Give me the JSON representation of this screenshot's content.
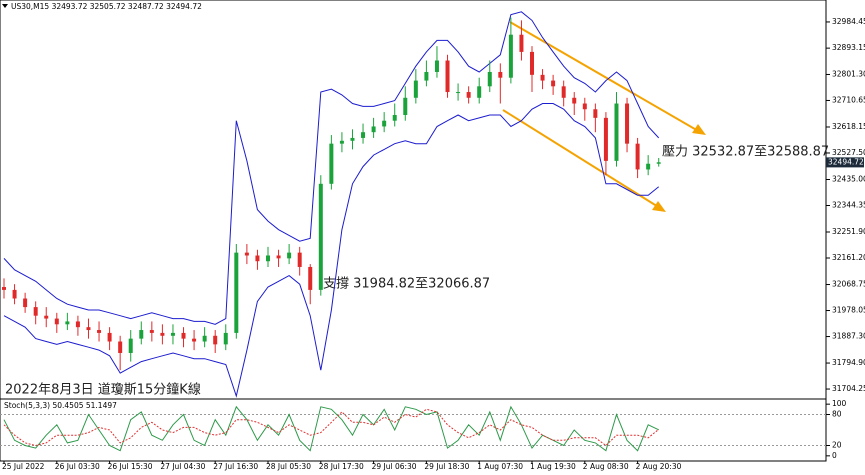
{
  "chart_data": [
    {
      "type": "candlestick",
      "title": "US30,M15  32493.72 32505.72 32487.72 32494.72",
      "categories": [
        "25 Jul 2022",
        null,
        null,
        null,
        null,
        "26 Jul 03:30",
        null,
        null,
        null,
        null,
        "26 Jul 15:30",
        null,
        null,
        null,
        null,
        "27 Jul 04:30",
        null,
        null,
        null,
        null,
        "27 Jul 16:30",
        null,
        null,
        null,
        null,
        "28 Jul 05:30",
        null,
        null,
        null,
        null,
        "28 Jul 17:30",
        null,
        null,
        null,
        null,
        "29 Jul 06:30",
        null,
        null,
        null,
        null,
        "29 Jul 18:30",
        null,
        null,
        null,
        null,
        "1 Aug 07:30",
        null,
        null,
        null,
        null,
        "1 Aug 19:30",
        null,
        null,
        null,
        null,
        "2 Aug 08:30",
        null,
        null,
        null,
        null,
        "2 Aug 20:30",
        null,
        null
      ],
      "open": [
        32060,
        32050,
        32020,
        31990,
        31960,
        31950,
        31930,
        31940,
        31920,
        31910,
        31900,
        31870,
        31830,
        31880,
        31910,
        31900,
        31890,
        31900,
        31880,
        31870,
        31890,
        31860,
        31900,
        32180,
        32170,
        32150,
        32170,
        32160,
        32180,
        32130,
        32050,
        32420,
        32560,
        32570,
        32580,
        32600,
        32620,
        32640,
        32660,
        32720,
        32780,
        32810,
        32850,
        32740,
        32740,
        32720,
        32760,
        32810,
        32790,
        32940,
        32880,
        32800,
        32780,
        32760,
        32720,
        32700,
        32680,
        32650,
        32500,
        32700,
        32560,
        32470,
        32490
      ],
      "high": [
        32090,
        32070,
        32040,
        32010,
        31990,
        31970,
        31970,
        31960,
        31950,
        31940,
        31920,
        31890,
        31910,
        31940,
        31940,
        31930,
        31930,
        31920,
        31910,
        31920,
        31910,
        31930,
        32210,
        32210,
        32190,
        32200,
        32190,
        32210,
        32200,
        32140,
        32450,
        32590,
        32600,
        32610,
        32630,
        32650,
        32670,
        32700,
        32760,
        32820,
        32850,
        32900,
        32870,
        32770,
        32760,
        32790,
        32850,
        32840,
        33000,
        32990,
        32900,
        32820,
        32800,
        32780,
        32740,
        32720,
        32700,
        32670,
        32740,
        32720,
        32580,
        32520,
        32510
      ],
      "low": [
        32020,
        32000,
        31970,
        31930,
        31920,
        31900,
        31910,
        31890,
        31880,
        31870,
        31840,
        31770,
        31800,
        31860,
        31870,
        31860,
        31860,
        31850,
        31840,
        31850,
        31830,
        31840,
        31880,
        32140,
        32120,
        32130,
        32130,
        32140,
        32100,
        32000,
        32030,
        32400,
        32530,
        32540,
        32560,
        32580,
        32600,
        32620,
        32640,
        32700,
        32760,
        32790,
        32720,
        32710,
        32700,
        32700,
        32740,
        32700,
        32770,
        32850,
        32740,
        32750,
        32730,
        32690,
        32660,
        32640,
        32600,
        32450,
        32480,
        32530,
        32440,
        32450,
        32480
      ],
      "close": [
        32050,
        32020,
        31990,
        31960,
        31950,
        31930,
        31940,
        31920,
        31910,
        31900,
        31870,
        31830,
        31880,
        31910,
        31900,
        31890,
        31900,
        31880,
        31870,
        31890,
        31860,
        31900,
        32180,
        32170,
        32150,
        32170,
        32160,
        32180,
        32130,
        32050,
        32420,
        32560,
        32570,
        32580,
        32600,
        32620,
        32640,
        32660,
        32720,
        32780,
        32810,
        32850,
        32740,
        32740,
        32720,
        32760,
        32810,
        32790,
        32940,
        32880,
        32800,
        32780,
        32760,
        32720,
        32700,
        32680,
        32650,
        32500,
        32700,
        32560,
        32470,
        32490,
        32495
      ],
      "up_color": "#1aa33a",
      "down_color": "#e02a2a",
      "series": [
        {
          "color": "#1c1ccf",
          "values": [
            32160,
            32120,
            32100,
            32080,
            32050,
            32020,
            32000,
            31990,
            31980,
            31980,
            31970,
            31960,
            31950,
            31960,
            31970,
            31960,
            31950,
            31950,
            31940,
            31940,
            31930,
            31950,
            32640,
            32500,
            32330,
            32290,
            32260,
            32240,
            32220,
            32230,
            32740,
            32750,
            32730,
            32700,
            32690,
            32690,
            32700,
            32710,
            32770,
            32830,
            32880,
            32920,
            32920,
            32880,
            32830,
            32810,
            32840,
            32870,
            33010,
            33020,
            32990,
            32930,
            32880,
            32830,
            32790,
            32770,
            32740,
            32780,
            32810,
            32780,
            32700,
            32620,
            32580
          ]
        },
        {
          "color": "#1c1ccf",
          "values": [
            31960,
            31940,
            31920,
            31880,
            31870,
            31860,
            31870,
            31860,
            31850,
            31840,
            31820,
            31760,
            31780,
            31800,
            31810,
            31820,
            31830,
            31820,
            31810,
            31810,
            31800,
            31790,
            31680,
            31840,
            32010,
            32060,
            32080,
            32100,
            32070,
            31960,
            31770,
            31980,
            32260,
            32420,
            32480,
            32520,
            32540,
            32560,
            32570,
            32560,
            32560,
            32620,
            32640,
            32660,
            32640,
            32650,
            32660,
            32660,
            32620,
            32640,
            32680,
            32700,
            32700,
            32680,
            32640,
            32620,
            32580,
            32420,
            32420,
            32400,
            32380,
            32380,
            32410
          ]
        }
      ],
      "last_price": 32494.72,
      "ylim": [
        31673,
        33061
      ],
      "yticks": [
        32984.45,
        32893.15,
        {
          "value": 32801.3,
          "label": "32801.30"
        },
        32710.65,
        32618.15,
        {
          "value": 32527.5,
          "label": "32527.50"
        },
        {
          "value": 32435,
          "label": "32435.00"
        },
        32344.35,
        {
          "value": 32251.9,
          "label": "32251.90"
        },
        {
          "value": 32161.2,
          "label": "32161.20"
        },
        32068.75,
        31978.05,
        {
          "value": 31887.3,
          "label": "31887.30"
        },
        {
          "value": 31794.9,
          "label": "31794.90"
        },
        31704.25
      ],
      "annotations": [
        "壓力 32532.87至32588.87",
        "支撐 31984.82至32066.87",
        "2022年8月3日 道瓊斯15分鐘K線"
      ]
    },
    {
      "type": "line",
      "title": "Stoch(5,3,3) 50.4505 51.1497",
      "series": [
        {
          "color": "#2e9a4a",
          "values": [
            70,
            30,
            20,
            15,
            40,
            60,
            25,
            30,
            80,
            50,
            20,
            10,
            70,
            85,
            40,
            30,
            60,
            80,
            30,
            20,
            70,
            40,
            95,
            70,
            30,
            60,
            40,
            80,
            30,
            10,
            95,
            90,
            70,
            40,
            80,
            60,
            90,
            50,
            95,
            90,
            80,
            85,
            15,
            30,
            60,
            40,
            85,
            30,
            95,
            60,
            15,
            40,
            30,
            20,
            50,
            30,
            25,
            10,
            80,
            30,
            10,
            60,
            50.4505
          ]
        },
        {
          "color": "#e03030",
          "values": [
            60,
            40,
            25,
            20,
            25,
            40,
            40,
            40,
            45,
            55,
            50,
            25,
            35,
            55,
            65,
            50,
            45,
            55,
            55,
            45,
            40,
            45,
            70,
            70,
            65,
            55,
            45,
            60,
            50,
            40,
            45,
            65,
            85,
            65,
            65,
            60,
            75,
            65,
            80,
            75,
            90,
            85,
            60,
            45,
            35,
            45,
            60,
            50,
            70,
            60,
            55,
            40,
            30,
            30,
            35,
            35,
            35,
            20,
            40,
            40,
            40,
            35,
            51.1497
          ]
        }
      ],
      "ylim": [
        -10,
        110
      ],
      "yticks": [
        100,
        80,
        20,
        0
      ]
    }
  ]
}
